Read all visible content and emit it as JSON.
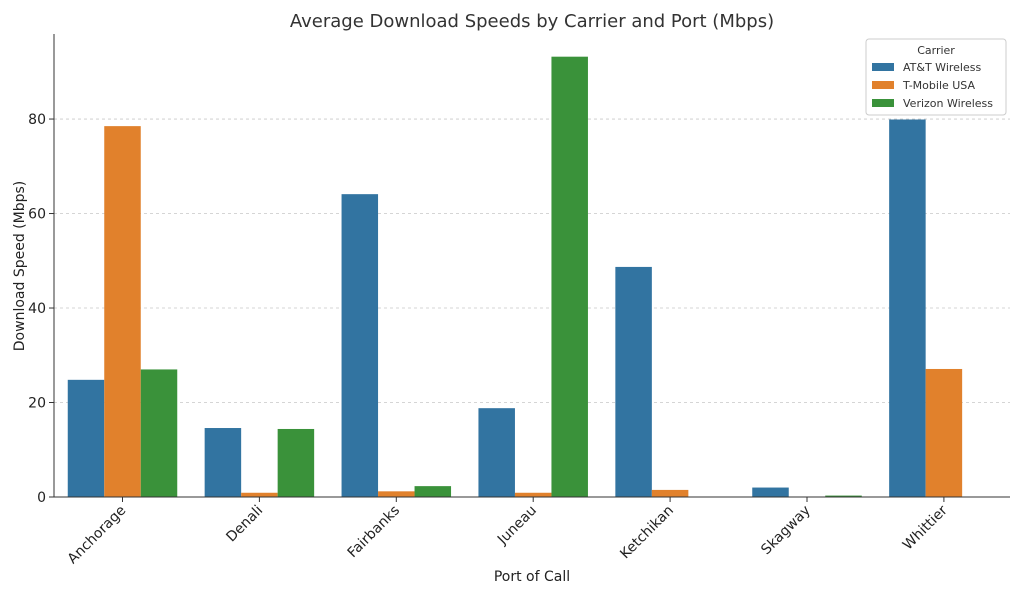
{
  "chart_data": {
    "type": "bar",
    "title": "Average Download Speeds by Carrier and Port (Mbps)",
    "xlabel": "Port of Call",
    "ylabel": "Download Speed (Mbps)",
    "ylim": [
      0,
      98
    ],
    "yticks": [
      0,
      20,
      40,
      60,
      80
    ],
    "grid": true,
    "categories": [
      "Anchorage",
      "Denali",
      "Fairbanks",
      "Juneau",
      "Ketchikan",
      "Skagway",
      "Whittier"
    ],
    "legend": {
      "title": "Carrier",
      "position": "top-right"
    },
    "series": [
      {
        "name": "AT&T Wireless",
        "color": "#3274a1",
        "values": [
          24.8,
          14.6,
          64.1,
          18.8,
          48.7,
          2.0,
          79.9
        ]
      },
      {
        "name": "T-Mobile USA",
        "color": "#e1812c",
        "values": [
          78.5,
          0.9,
          1.2,
          0.9,
          1.5,
          null,
          27.1
        ]
      },
      {
        "name": "Verizon Wireless",
        "color": "#3a923a",
        "values": [
          27.0,
          14.4,
          2.3,
          93.2,
          null,
          0.3,
          null
        ]
      }
    ]
  }
}
